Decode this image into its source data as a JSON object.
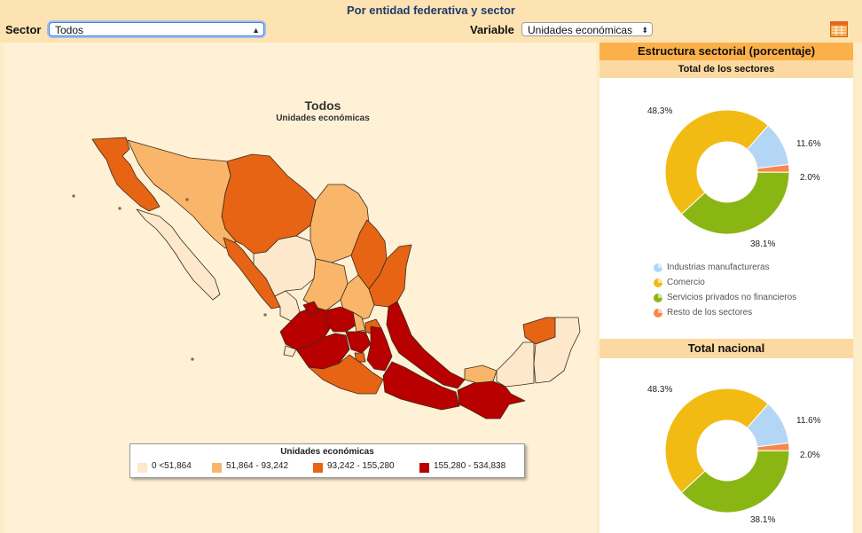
{
  "header": {
    "title": "Por entidad federativa y sector",
    "sector_label": "Sector",
    "sector_value": "Todos",
    "variable_label": "Variable",
    "variable_value": "Unidades económicas",
    "table_icon": "table-icon"
  },
  "map": {
    "title": "Todos",
    "subtitle": "Unidades económicas",
    "legend": {
      "title": "Unidades económicas",
      "items": [
        {
          "label": "0 <51,864",
          "color": "#fde8cb"
        },
        {
          "label": "51,864 - 93,242",
          "color": "#f9b56a"
        },
        {
          "label": "93,242 - 155,280",
          "color": "#e66414"
        },
        {
          "label": "155,280 - 534,838",
          "color": "#b80000"
        }
      ]
    }
  },
  "panel": {
    "header": "Estructura sectorial (porcentaje)",
    "section1_title": "Total de los sectores",
    "section2_title": "Total nacional",
    "legend": [
      {
        "label": "Industrias manufactureras",
        "color": "#b3d6f7"
      },
      {
        "label": "Comercio",
        "color": "#f2bb14"
      },
      {
        "label": "Servicios privados no financieros",
        "color": "#8ab613"
      },
      {
        "label": "Resto de los sectores",
        "color": "#f6884a"
      }
    ]
  },
  "chart_data": [
    {
      "type": "pie",
      "title": "Total de los sectores",
      "categories": [
        "Industrias manufactureras",
        "Comercio",
        "Servicios privados no financieros",
        "Resto de los sectores"
      ],
      "values": [
        11.6,
        48.3,
        38.1,
        2.0
      ],
      "labels": [
        "11.6%",
        "48.3%",
        "38.1%",
        "2.0%"
      ]
    },
    {
      "type": "pie",
      "title": "Total nacional",
      "categories": [
        "Industrias manufactureras",
        "Comercio",
        "Servicios privados no financieros",
        "Resto de los sectores"
      ],
      "values": [
        11.6,
        48.3,
        38.1,
        2.0
      ],
      "labels": [
        "11.6%",
        "48.3%",
        "38.1%",
        "2.0%"
      ]
    }
  ]
}
